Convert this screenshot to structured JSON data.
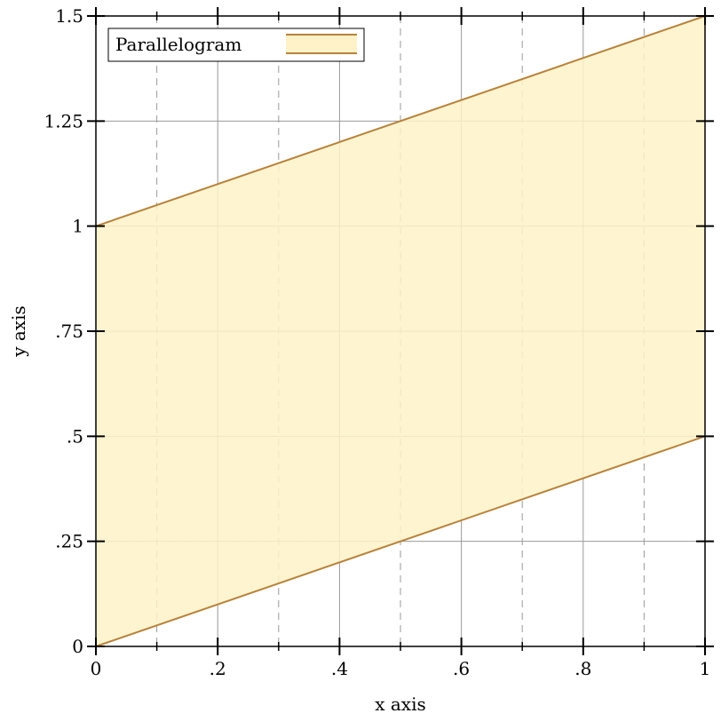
{
  "chart_data": {
    "type": "area",
    "xlabel": "x axis",
    "ylabel": "y axis",
    "xlim": [
      0,
      1
    ],
    "ylim": [
      0,
      1.5
    ],
    "x_ticks": [
      {
        "value": 0,
        "label": "0"
      },
      {
        "value": 0.2,
        "label": ".2"
      },
      {
        "value": 0.4,
        "label": ".4"
      },
      {
        "value": 0.6,
        "label": ".6"
      },
      {
        "value": 0.8,
        "label": ".8"
      },
      {
        "value": 1,
        "label": "1"
      }
    ],
    "x_minor_ticks": [
      0.1,
      0.3,
      0.5,
      0.7,
      0.9
    ],
    "y_ticks": [
      {
        "value": 0,
        "label": "0"
      },
      {
        "value": 0.25,
        "label": ".25"
      },
      {
        "value": 0.5,
        "label": ".5"
      },
      {
        "value": 0.75,
        "label": ".75"
      },
      {
        "value": 1,
        "label": "1"
      },
      {
        "value": 1.25,
        "label": "1.25"
      },
      {
        "value": 1.5,
        "label": "1.5"
      }
    ],
    "grid": true,
    "legend_position": "top-left",
    "series": [
      {
        "name": "Parallelogram",
        "x": [
          0,
          1
        ],
        "lower": [
          0,
          0.5
        ],
        "upper": [
          1,
          1.5
        ],
        "fill_color": "#fff2c8",
        "line_color": "#b8823a"
      }
    ]
  }
}
